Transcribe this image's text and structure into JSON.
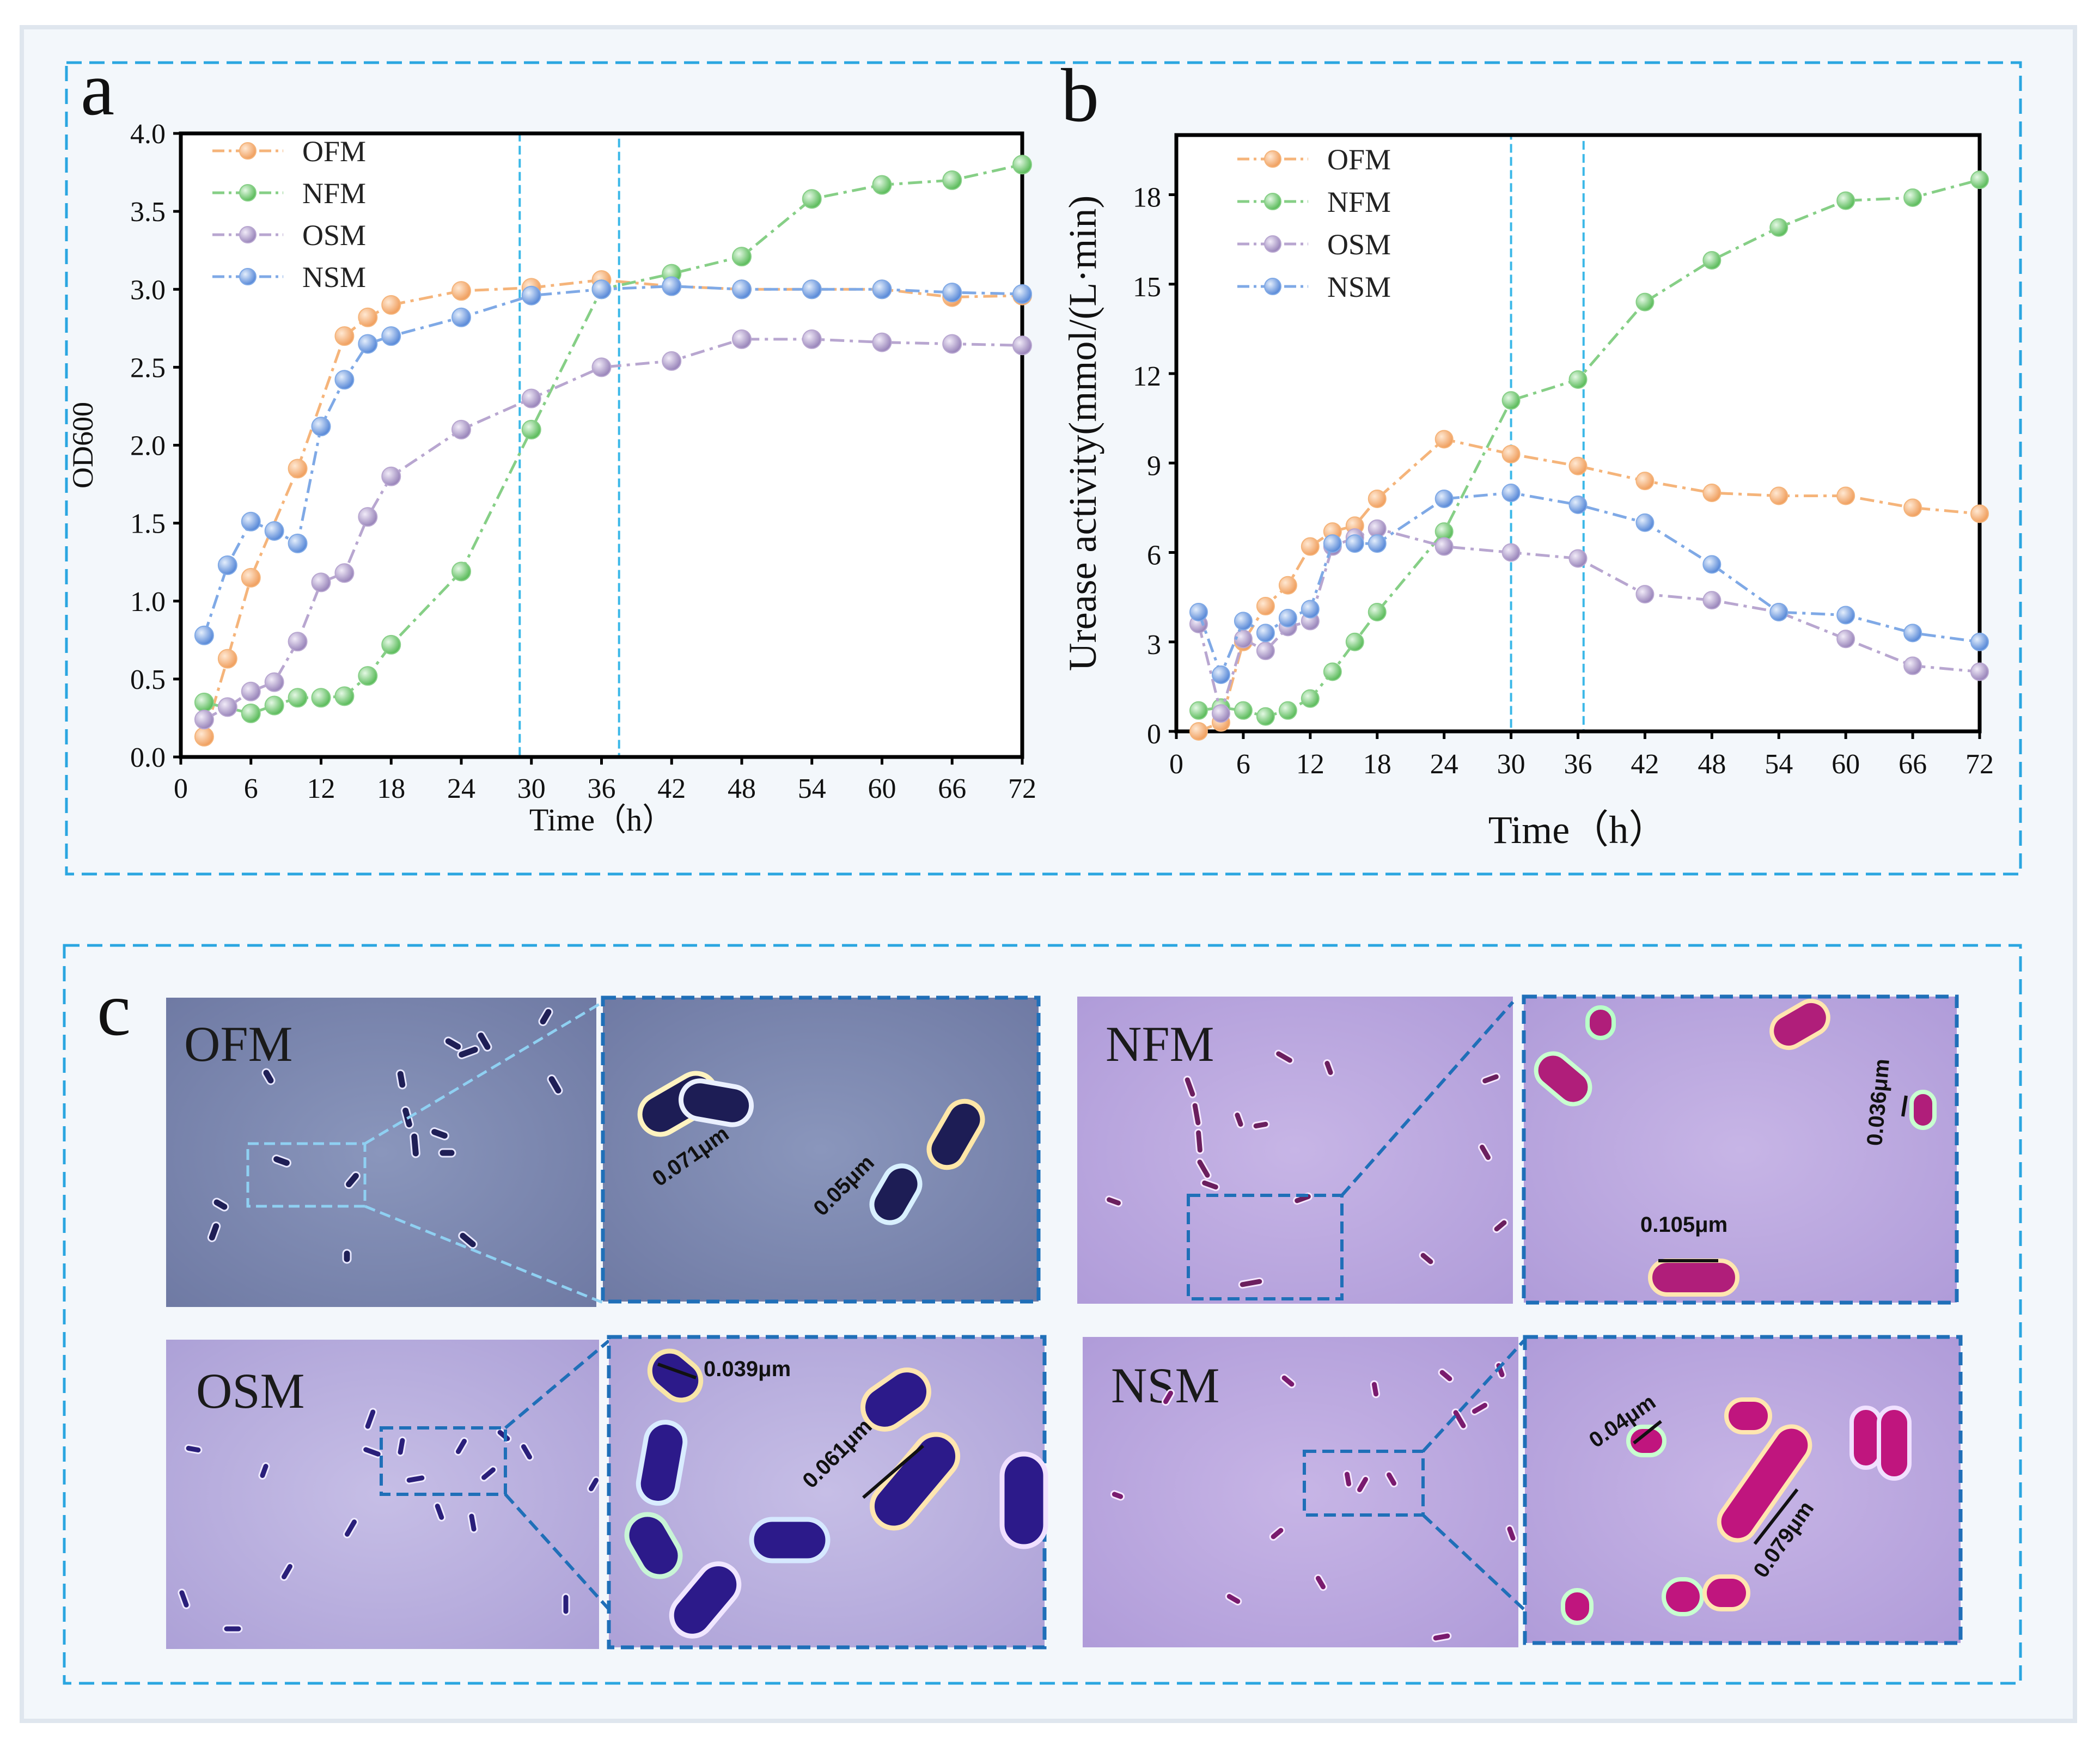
{
  "panel_letters": {
    "a": "a",
    "b": "b",
    "c": "c"
  },
  "colors": {
    "OFM": "#f5b47a",
    "NFM": "#86cf86",
    "OSM": "#b8a6d0",
    "NSM": "#7fa9e6"
  },
  "chart_data": [
    {
      "id": "a",
      "type": "line",
      "title": "",
      "xlabel": "Time（h）",
      "ylabel": "OD600",
      "xlim": [
        0,
        72
      ],
      "ylim": [
        0,
        4.0
      ],
      "xticks": [
        0,
        6,
        12,
        18,
        24,
        30,
        36,
        42,
        48,
        54,
        60,
        66,
        72
      ],
      "yticks": [
        0.0,
        0.5,
        1.0,
        1.5,
        2.0,
        2.5,
        3.0,
        3.5,
        4.0
      ],
      "ytick_labels": [
        "0.0",
        "0.5",
        "1.0",
        "1.5",
        "2.0",
        "2.5",
        "3.0",
        "3.5",
        "4.0"
      ],
      "highlight_range": [
        29,
        37.5
      ],
      "legend_position": "top-left",
      "series": [
        {
          "name": "OFM",
          "x": [
            2,
            4,
            6,
            10,
            14,
            16,
            18,
            24,
            30,
            36,
            42,
            48,
            54,
            60,
            66,
            72
          ],
          "y": [
            0.13,
            0.63,
            1.15,
            1.85,
            2.7,
            2.82,
            2.9,
            2.99,
            3.01,
            3.06,
            3.02,
            3.0,
            3.0,
            3.0,
            2.95,
            2.96
          ]
        },
        {
          "name": "NFM",
          "x": [
            2,
            6,
            8,
            10,
            12,
            14,
            16,
            18,
            24,
            30,
            36,
            42,
            48,
            54,
            60,
            66,
            72
          ],
          "y": [
            0.35,
            0.28,
            0.33,
            0.38,
            0.38,
            0.39,
            0.52,
            0.72,
            1.19,
            2.1,
            3.0,
            3.1,
            3.21,
            3.58,
            3.67,
            3.7,
            3.8
          ]
        },
        {
          "name": "OSM",
          "x": [
            2,
            4,
            6,
            8,
            10,
            12,
            14,
            16,
            18,
            24,
            30,
            36,
            42,
            48,
            54,
            60,
            66,
            72
          ],
          "y": [
            0.24,
            0.32,
            0.42,
            0.48,
            0.74,
            1.12,
            1.18,
            1.54,
            1.8,
            2.1,
            2.3,
            2.5,
            2.54,
            2.68,
            2.68,
            2.66,
            2.65,
            2.64
          ]
        },
        {
          "name": "NSM",
          "x": [
            2,
            4,
            6,
            8,
            10,
            12,
            14,
            16,
            18,
            24,
            30,
            36,
            42,
            48,
            54,
            60,
            66,
            72
          ],
          "y": [
            0.78,
            1.23,
            1.51,
            1.45,
            1.37,
            2.12,
            2.42,
            2.65,
            2.7,
            2.82,
            2.96,
            3.0,
            3.02,
            3.0,
            3.0,
            3.0,
            2.98,
            2.97
          ]
        }
      ]
    },
    {
      "id": "b",
      "type": "line",
      "title": "",
      "xlabel": "Time（h）",
      "ylabel": "Urease activity(mmol/(L·min)",
      "xlim": [
        0,
        72
      ],
      "ylim": [
        0,
        20
      ],
      "xticks": [
        0,
        6,
        12,
        18,
        24,
        30,
        36,
        42,
        48,
        54,
        60,
        66,
        72
      ],
      "yticks": [
        0,
        3,
        6,
        9,
        12,
        15,
        18
      ],
      "ytick_labels": [
        "0",
        "3",
        "6",
        "9",
        "12",
        "15",
        "18"
      ],
      "highlight_range": [
        30,
        36.5
      ],
      "legend_position": "top-left",
      "series": [
        {
          "name": "OFM",
          "x": [
            2,
            4,
            6,
            8,
            10,
            12,
            14,
            16,
            18,
            24,
            30,
            36,
            42,
            48,
            54,
            60,
            66,
            72
          ],
          "y": [
            0.0,
            0.3,
            3.0,
            4.2,
            4.9,
            6.2,
            6.7,
            6.9,
            7.8,
            9.8,
            9.3,
            8.9,
            8.4,
            8.0,
            7.9,
            7.9,
            7.5,
            7.3
          ]
        },
        {
          "name": "NFM",
          "x": [
            2,
            4,
            6,
            8,
            10,
            12,
            14,
            16,
            18,
            24,
            30,
            36,
            42,
            48,
            54,
            60,
            66,
            72
          ],
          "y": [
            0.7,
            0.8,
            0.7,
            0.5,
            0.7,
            1.1,
            2.0,
            3.0,
            4.0,
            6.7,
            11.1,
            11.8,
            14.4,
            15.8,
            16.9,
            17.8,
            17.9,
            18.5
          ]
        },
        {
          "name": "OSM",
          "x": [
            2,
            4,
            6,
            8,
            10,
            12,
            14,
            16,
            18,
            24,
            30,
            36,
            42,
            48,
            54,
            60,
            66,
            72
          ],
          "y": [
            3.6,
            0.6,
            3.1,
            2.7,
            3.5,
            3.7,
            6.2,
            6.5,
            6.8,
            6.2,
            6.0,
            5.8,
            4.6,
            4.4,
            4.0,
            3.1,
            2.2,
            2.0
          ]
        },
        {
          "name": "NSM",
          "x": [
            2,
            4,
            6,
            8,
            10,
            12,
            14,
            16,
            18,
            24,
            30,
            36,
            42,
            48,
            54,
            60,
            66,
            72
          ],
          "y": [
            4.0,
            1.9,
            3.7,
            3.3,
            3.8,
            4.1,
            6.3,
            6.3,
            6.3,
            7.8,
            8.0,
            7.6,
            7.0,
            5.6,
            4.0,
            3.9,
            3.3,
            3.0
          ]
        }
      ]
    }
  ],
  "micrographs": {
    "OFM": {
      "label": "OFM",
      "scales": [
        "0.071μm",
        "0.05μm"
      ]
    },
    "NFM": {
      "label": "NFM",
      "scales": [
        "0.036μm",
        "0.105μm"
      ]
    },
    "OSM": {
      "label": "OSM",
      "scales": [
        "0.039μm",
        "0.061μm"
      ]
    },
    "NSM": {
      "label": "NSM",
      "scales": [
        "0.04μm",
        "0.079μm"
      ]
    }
  }
}
